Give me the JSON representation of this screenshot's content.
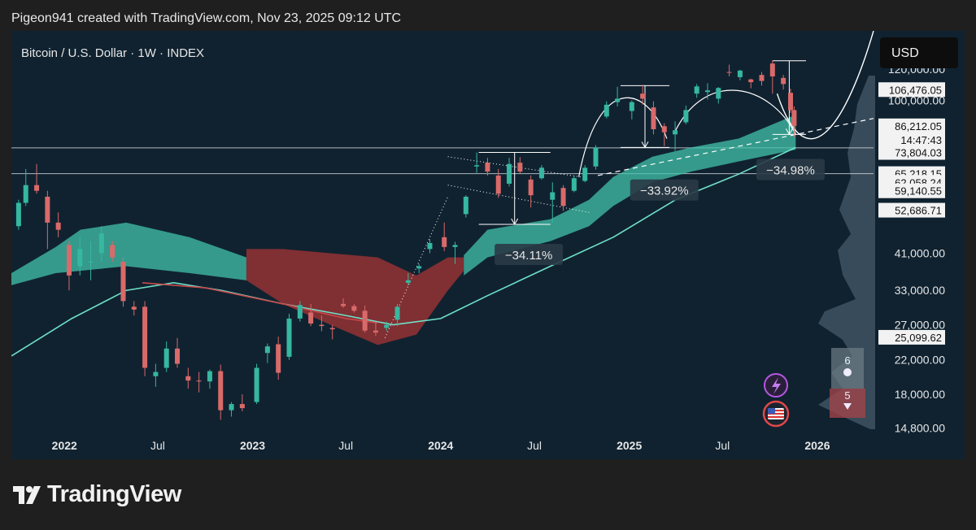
{
  "header": {
    "text": "Pigeon941 created with TradingView.com, Nov 23, 2025 09:12 UTC"
  },
  "footer": {
    "brand": "TradingView"
  },
  "colors": {
    "background": "#102230",
    "up": "#36b7a1",
    "down": "#d96a6a",
    "cloud_bull": "#41c3aa",
    "cloud_bear": "#a63434",
    "ma": "#6fe0c8",
    "ma_red": "#c9484b"
  },
  "chart_data": {
    "type": "candlestick",
    "title": "Bitcoin / U.S. Dollar · 1W · INDEX",
    "currency": "USD",
    "y_scale": "log",
    "ylim": [
      14000,
      150000
    ],
    "xlim": [
      "2021-09-20",
      "2026-04-20"
    ],
    "x_ticks": [
      {
        "date": "2022-01-01",
        "label": "2022"
      },
      {
        "date": "2022-07-01",
        "label": "Jul"
      },
      {
        "date": "2023-01-01",
        "label": "2023"
      },
      {
        "date": "2023-07-01",
        "label": "Jul"
      },
      {
        "date": "2024-01-01",
        "label": "2024"
      },
      {
        "date": "2024-07-01",
        "label": "Jul"
      },
      {
        "date": "2025-01-01",
        "label": "2025"
      },
      {
        "date": "2025-07-01",
        "label": "Jul"
      },
      {
        "date": "2026-01-01",
        "label": "2026"
      }
    ],
    "y_ticks": [
      {
        "value": 120000,
        "label": "120,000.00"
      },
      {
        "value": 100000,
        "label": "100,000.00"
      },
      {
        "value": 41000,
        "label": "41,000.00"
      },
      {
        "value": 33000,
        "label": "33,000.00"
      },
      {
        "value": 27000,
        "label": "27,000.00"
      },
      {
        "value": 22000,
        "label": "22,000.00"
      },
      {
        "value": 18000,
        "label": "18,000.00"
      },
      {
        "value": 14800,
        "label": "14,800.00"
      }
    ],
    "price_labels": [
      {
        "value": 106476.05,
        "label": "106,476.05",
        "style": "light"
      },
      {
        "value": 86212.05,
        "label": "86,212.05",
        "style": "light"
      },
      {
        "value": 79500,
        "label": "14:47:43",
        "style": "light"
      },
      {
        "value": 73804.03,
        "label": "73,804.03",
        "style": "light"
      },
      {
        "value": 65218.15,
        "label": "65,218.15",
        "style": "light"
      },
      {
        "value": 62000,
        "label": "62,058.24",
        "style": "light"
      },
      {
        "value": 59000,
        "label": "59,140.55",
        "style": "light"
      },
      {
        "value": 52686.71,
        "label": "52,686.71",
        "style": "light"
      },
      {
        "value": 25099.62,
        "label": "25,099.62",
        "style": "light"
      }
    ],
    "horizontal_lines": [
      75800,
      65218.15
    ],
    "annotations": [
      {
        "label": "−34.11%",
        "date": "2024-06-20",
        "value": 40500
      },
      {
        "label": "−33.92%",
        "date": "2025-03-10",
        "value": 59000
      },
      {
        "label": "−34.98%",
        "date": "2025-11-10",
        "value": 66500
      }
    ],
    "badges": [
      {
        "label": "6"
      },
      {
        "label": "5"
      }
    ],
    "candles": [
      {
        "t": "2021-10-04",
        "o": 48000,
        "h": 56000,
        "l": 47000,
        "c": 55000
      },
      {
        "t": "2021-10-18",
        "o": 55000,
        "h": 67000,
        "l": 54000,
        "c": 61000
      },
      {
        "t": "2021-11-08",
        "o": 61000,
        "h": 69000,
        "l": 58000,
        "c": 59000
      },
      {
        "t": "2021-11-29",
        "o": 57000,
        "h": 59000,
        "l": 42000,
        "c": 49000
      },
      {
        "t": "2021-12-20",
        "o": 49000,
        "h": 52000,
        "l": 45000,
        "c": 47000
      },
      {
        "t": "2022-01-10",
        "o": 43000,
        "h": 44000,
        "l": 33000,
        "c": 36000
      },
      {
        "t": "2022-01-31",
        "o": 38000,
        "h": 45000,
        "l": 36000,
        "c": 42000
      },
      {
        "t": "2022-02-21",
        "o": 39000,
        "h": 44000,
        "l": 35000,
        "c": 39000
      },
      {
        "t": "2022-03-14",
        "o": 41000,
        "h": 48000,
        "l": 39000,
        "c": 46000
      },
      {
        "t": "2022-04-04",
        "o": 43000,
        "h": 44000,
        "l": 39000,
        "c": 40000
      },
      {
        "t": "2022-04-25",
        "o": 39000,
        "h": 40000,
        "l": 30000,
        "c": 31000
      },
      {
        "t": "2022-05-16",
        "o": 30000,
        "h": 31000,
        "l": 28500,
        "c": 29500
      },
      {
        "t": "2022-06-06",
        "o": 30000,
        "h": 31000,
        "l": 20000,
        "c": 21000
      },
      {
        "t": "2022-06-27",
        "o": 20000,
        "h": 21500,
        "l": 18800,
        "c": 20500
      },
      {
        "t": "2022-07-18",
        "o": 21000,
        "h": 24500,
        "l": 20500,
        "c": 23500
      },
      {
        "t": "2022-08-08",
        "o": 23500,
        "h": 25000,
        "l": 21000,
        "c": 21500
      },
      {
        "t": "2022-08-29",
        "o": 20000,
        "h": 21000,
        "l": 18600,
        "c": 19500
      },
      {
        "t": "2022-09-19",
        "o": 19500,
        "h": 20500,
        "l": 18200,
        "c": 19400
      },
      {
        "t": "2022-10-10",
        "o": 19400,
        "h": 20800,
        "l": 18600,
        "c": 20600
      },
      {
        "t": "2022-10-31",
        "o": 20600,
        "h": 21400,
        "l": 15500,
        "c": 16400
      },
      {
        "t": "2022-11-21",
        "o": 16400,
        "h": 17200,
        "l": 15800,
        "c": 17000
      },
      {
        "t": "2022-12-12",
        "o": 17000,
        "h": 18000,
        "l": 16300,
        "c": 16600
      },
      {
        "t": "2023-01-09",
        "o": 17200,
        "h": 21500,
        "l": 17000,
        "c": 21000
      },
      {
        "t": "2023-01-30",
        "o": 22900,
        "h": 24200,
        "l": 21600,
        "c": 23800
      },
      {
        "t": "2023-02-20",
        "o": 24100,
        "h": 25200,
        "l": 19600,
        "c": 20400
      },
      {
        "t": "2023-03-13",
        "o": 22400,
        "h": 28800,
        "l": 22000,
        "c": 28000
      },
      {
        "t": "2023-04-03",
        "o": 28000,
        "h": 31000,
        "l": 27500,
        "c": 30300
      },
      {
        "t": "2023-04-24",
        "o": 29000,
        "h": 30500,
        "l": 26800,
        "c": 27200
      },
      {
        "t": "2023-05-15",
        "o": 27000,
        "h": 28500,
        "l": 26000,
        "c": 26800
      },
      {
        "t": "2023-06-05",
        "o": 26500,
        "h": 27000,
        "l": 24800,
        "c": 26300
      },
      {
        "t": "2023-06-26",
        "o": 30500,
        "h": 31500,
        "l": 29800,
        "c": 30100
      },
      {
        "t": "2023-07-17",
        "o": 30100,
        "h": 30500,
        "l": 29000,
        "c": 29300
      },
      {
        "t": "2023-08-07",
        "o": 29300,
        "h": 30200,
        "l": 25800,
        "c": 26100
      },
      {
        "t": "2023-08-28",
        "o": 26100,
        "h": 27500,
        "l": 25300,
        "c": 25800
      },
      {
        "t": "2023-09-18",
        "o": 26500,
        "h": 27500,
        "l": 26000,
        "c": 27000
      },
      {
        "t": "2023-10-09",
        "o": 27800,
        "h": 30500,
        "l": 26800,
        "c": 30000
      },
      {
        "t": "2023-10-30",
        "o": 34500,
        "h": 36500,
        "l": 34000,
        "c": 35000
      },
      {
        "t": "2023-11-20",
        "o": 37500,
        "h": 38500,
        "l": 36500,
        "c": 38000
      },
      {
        "t": "2023-12-11",
        "o": 42000,
        "h": 44500,
        "l": 41000,
        "c": 43500
      },
      {
        "t": "2024-01-08",
        "o": 45000,
        "h": 49000,
        "l": 41500,
        "c": 42500
      },
      {
        "t": "2024-01-29",
        "o": 42500,
        "h": 43800,
        "l": 38500,
        "c": 43000
      },
      {
        "t": "2024-02-19",
        "o": 51500,
        "h": 57500,
        "l": 50500,
        "c": 57000
      },
      {
        "t": "2024-03-11",
        "o": 68000,
        "h": 73800,
        "l": 65500,
        "c": 68500
      },
      {
        "t": "2024-04-01",
        "o": 69500,
        "h": 71500,
        "l": 64500,
        "c": 66000
      },
      {
        "t": "2024-04-22",
        "o": 64500,
        "h": 67000,
        "l": 56600,
        "c": 58000
      },
      {
        "t": "2024-05-13",
        "o": 61500,
        "h": 71500,
        "l": 60500,
        "c": 69000
      },
      {
        "t": "2024-06-03",
        "o": 69500,
        "h": 71800,
        "l": 65200,
        "c": 66000
      },
      {
        "t": "2024-06-24",
        "o": 63000,
        "h": 64500,
        "l": 53500,
        "c": 57500
      },
      {
        "t": "2024-07-15",
        "o": 63500,
        "h": 68500,
        "l": 63000,
        "c": 67500
      },
      {
        "t": "2024-08-05",
        "o": 56000,
        "h": 62000,
        "l": 49000,
        "c": 58500
      },
      {
        "t": "2024-08-26",
        "o": 60000,
        "h": 61000,
        "l": 52500,
        "c": 54000
      },
      {
        "t": "2024-09-16",
        "o": 59000,
        "h": 64500,
        "l": 58500,
        "c": 63500
      },
      {
        "t": "2024-10-07",
        "o": 62500,
        "h": 68500,
        "l": 62000,
        "c": 67500
      },
      {
        "t": "2024-10-28",
        "o": 68000,
        "h": 77000,
        "l": 66800,
        "c": 76000
      },
      {
        "t": "2024-11-18",
        "o": 91000,
        "h": 99500,
        "l": 90000,
        "c": 97500
      },
      {
        "t": "2024-12-09",
        "o": 99000,
        "h": 108300,
        "l": 96500,
        "c": 101000
      },
      {
        "t": "2025-01-06",
        "o": 94000,
        "h": 100000,
        "l": 89500,
        "c": 99000
      },
      {
        "t": "2025-01-27",
        "o": 104000,
        "h": 109500,
        "l": 97500,
        "c": 101000
      },
      {
        "t": "2025-02-17",
        "o": 96000,
        "h": 99500,
        "l": 82000,
        "c": 84500
      },
      {
        "t": "2025-03-10",
        "o": 86000,
        "h": 87500,
        "l": 76600,
        "c": 83000
      },
      {
        "t": "2025-03-31",
        "o": 82000,
        "h": 88500,
        "l": 74500,
        "c": 84000
      },
      {
        "t": "2025-04-21",
        "o": 88000,
        "h": 97000,
        "l": 87000,
        "c": 94500
      },
      {
        "t": "2025-05-12",
        "o": 104000,
        "h": 110000,
        "l": 101500,
        "c": 108500
      },
      {
        "t": "2025-06-02",
        "o": 105000,
        "h": 110500,
        "l": 100500,
        "c": 106000
      },
      {
        "t": "2025-06-23",
        "o": 101000,
        "h": 108000,
        "l": 98200,
        "c": 107500
      },
      {
        "t": "2025-07-14",
        "o": 118000,
        "h": 123200,
        "l": 115000,
        "c": 117500
      },
      {
        "t": "2025-08-04",
        "o": 114500,
        "h": 119500,
        "l": 112500,
        "c": 119000
      },
      {
        "t": "2025-08-25",
        "o": 113000,
        "h": 113500,
        "l": 107300,
        "c": 111200
      },
      {
        "t": "2025-09-15",
        "o": 116000,
        "h": 118000,
        "l": 109000,
        "c": 112000
      },
      {
        "t": "2025-10-06",
        "o": 124000,
        "h": 126200,
        "l": 104000,
        "c": 115000
      },
      {
        "t": "2025-10-27",
        "o": 114000,
        "h": 116000,
        "l": 106500,
        "c": 110000
      },
      {
        "t": "2025-11-10",
        "o": 104500,
        "h": 107000,
        "l": 93000,
        "c": 94500
      },
      {
        "t": "2025-11-17",
        "o": 94500,
        "h": 96500,
        "l": 80600,
        "c": 86212
      }
    ]
  }
}
